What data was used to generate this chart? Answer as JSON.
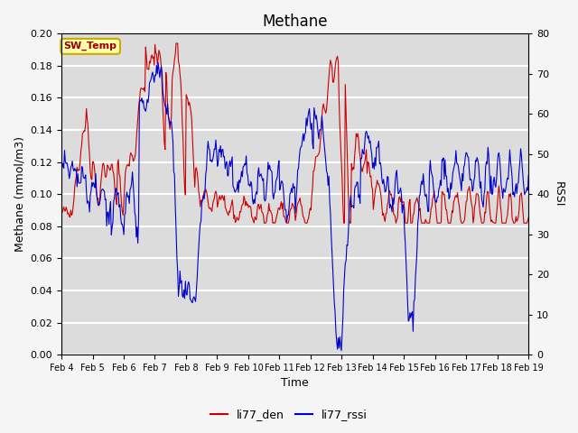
{
  "title": "Methane",
  "ylabel_left": "Methane (mmol/m3)",
  "ylabel_right": "RSSI",
  "xlabel": "Time",
  "xlim": [
    0,
    15
  ],
  "ylim_left": [
    0.0,
    0.2
  ],
  "ylim_right": [
    0,
    80
  ],
  "yticks_left": [
    0.0,
    0.02,
    0.04,
    0.06,
    0.08,
    0.1,
    0.12,
    0.14,
    0.16,
    0.18,
    0.2
  ],
  "yticks_right": [
    0,
    10,
    20,
    30,
    40,
    50,
    60,
    70,
    80
  ],
  "xtick_labels": [
    "Feb 4",
    "Feb 5",
    "Feb 6",
    "Feb 7",
    "Feb 8",
    "Feb 9",
    "Feb 10",
    "Feb 11",
    "Feb 12",
    "Feb 13",
    "Feb 14",
    "Feb 15",
    "Feb 16",
    "Feb 17",
    "Feb 18",
    "Feb 19"
  ],
  "color_den": "#cc0000",
  "color_rssi": "#0000cc",
  "bg_color": "#dcdcdc",
  "fig_bg": "#f5f5f5",
  "annotation_text": "SW_Temp",
  "annotation_bg": "#ffffaa",
  "annotation_edge": "#ccaa00",
  "legend_den": "li77_den",
  "legend_rssi": "li77_rssi",
  "title_fontsize": 12,
  "axis_fontsize": 9,
  "tick_fontsize": 8
}
